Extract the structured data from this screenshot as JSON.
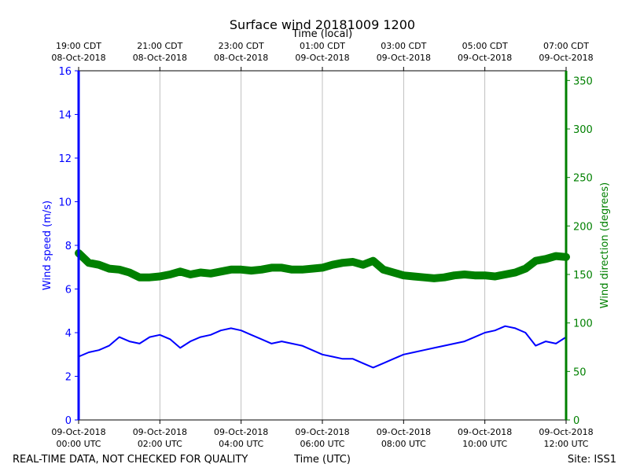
{
  "chart_data": {
    "type": "line",
    "title": "Surface wind 20181009 1200",
    "xlabel_top": "Time (local)",
    "xlabel_bottom": "Time (UTC)",
    "ylabel_left": "Wind speed (m/s)",
    "ylabel_right": "Wind direction (degrees)",
    "ylim_left": [
      0,
      16
    ],
    "ylim_right": [
      0,
      360
    ],
    "yticks_left": [
      0,
      2,
      4,
      6,
      8,
      10,
      12,
      14,
      16
    ],
    "yticks_right": [
      0,
      50,
      100,
      150,
      200,
      250,
      300,
      350
    ],
    "xlim_hours_utc": [
      0,
      12
    ],
    "grid": "vertical",
    "bottom_ticks": [
      {
        "hour": 0,
        "date": "09-Oct-2018",
        "time": "00:00 UTC"
      },
      {
        "hour": 2,
        "date": "09-Oct-2018",
        "time": "02:00 UTC"
      },
      {
        "hour": 4,
        "date": "09-Oct-2018",
        "time": "04:00 UTC"
      },
      {
        "hour": 6,
        "date": "09-Oct-2018",
        "time": "06:00 UTC"
      },
      {
        "hour": 8,
        "date": "09-Oct-2018",
        "time": "08:00 UTC"
      },
      {
        "hour": 10,
        "date": "09-Oct-2018",
        "time": "10:00 UTC"
      },
      {
        "hour": 12,
        "date": "09-Oct-2018",
        "time": "12:00 UTC"
      }
    ],
    "top_ticks": [
      {
        "hour": 0,
        "time": "19:00 CDT",
        "date": "08-Oct-2018"
      },
      {
        "hour": 2,
        "time": "21:00 CDT",
        "date": "08-Oct-2018"
      },
      {
        "hour": 4,
        "time": "23:00 CDT",
        "date": "08-Oct-2018"
      },
      {
        "hour": 6,
        "time": "01:00 CDT",
        "date": "09-Oct-2018"
      },
      {
        "hour": 8,
        "time": "03:00 CDT",
        "date": "09-Oct-2018"
      },
      {
        "hour": 10,
        "time": "05:00 CDT",
        "date": "09-Oct-2018"
      },
      {
        "hour": 12,
        "time": "07:00 CDT",
        "date": "09-Oct-2018"
      }
    ],
    "series": [
      {
        "name": "Wind speed",
        "axis": "left",
        "color": "#0000ff",
        "x_hours": [
          0,
          0.25,
          0.5,
          0.75,
          1,
          1.25,
          1.5,
          1.75,
          2,
          2.25,
          2.5,
          2.75,
          3,
          3.25,
          3.5,
          3.75,
          4,
          4.25,
          4.5,
          4.75,
          5,
          5.25,
          5.5,
          5.75,
          6,
          6.25,
          6.5,
          6.75,
          7,
          7.25,
          7.5,
          7.75,
          8,
          8.25,
          8.5,
          8.75,
          9,
          9.25,
          9.5,
          9.75,
          10,
          10.25,
          10.5,
          10.75,
          11,
          11.25,
          11.5,
          11.75,
          12
        ],
        "values": [
          2.9,
          3.1,
          3.2,
          3.4,
          3.8,
          3.6,
          3.5,
          3.8,
          3.9,
          3.7,
          3.3,
          3.6,
          3.8,
          3.9,
          4.1,
          4.2,
          4.1,
          3.9,
          3.7,
          3.5,
          3.6,
          3.5,
          3.4,
          3.2,
          3.0,
          2.9,
          2.8,
          2.8,
          2.6,
          2.4,
          2.6,
          2.8,
          3.0,
          3.1,
          3.2,
          3.3,
          3.4,
          3.5,
          3.6,
          3.8,
          4.0,
          4.1,
          4.3,
          4.2,
          4.0,
          3.4,
          3.6,
          3.5,
          3.8
        ]
      },
      {
        "name": "Wind direction",
        "axis": "right",
        "color": "#008000",
        "x_hours": [
          0,
          0.25,
          0.5,
          0.75,
          1,
          1.25,
          1.5,
          1.75,
          2,
          2.25,
          2.5,
          2.75,
          3,
          3.25,
          3.5,
          3.75,
          4,
          4.25,
          4.5,
          4.75,
          5,
          5.25,
          5.5,
          5.75,
          6,
          6.25,
          6.5,
          6.75,
          7,
          7.25,
          7.5,
          7.75,
          8,
          8.25,
          8.5,
          8.75,
          9,
          9.25,
          9.5,
          9.75,
          10,
          10.25,
          10.5,
          10.75,
          11,
          11.25,
          11.5,
          11.75,
          12
        ],
        "values": [
          172,
          162,
          160,
          156,
          155,
          152,
          147,
          147,
          148,
          150,
          153,
          150,
          152,
          151,
          153,
          155,
          155,
          154,
          155,
          157,
          157,
          155,
          155,
          156,
          157,
          160,
          162,
          163,
          160,
          164,
          155,
          152,
          149,
          148,
          147,
          146,
          147,
          149,
          150,
          149,
          149,
          148,
          150,
          152,
          156,
          164,
          166,
          169,
          168
        ]
      }
    ]
  },
  "footer": {
    "disclaimer": "REAL-TIME DATA, NOT CHECKED FOR QUALITY",
    "site": "Site: ISS1"
  }
}
